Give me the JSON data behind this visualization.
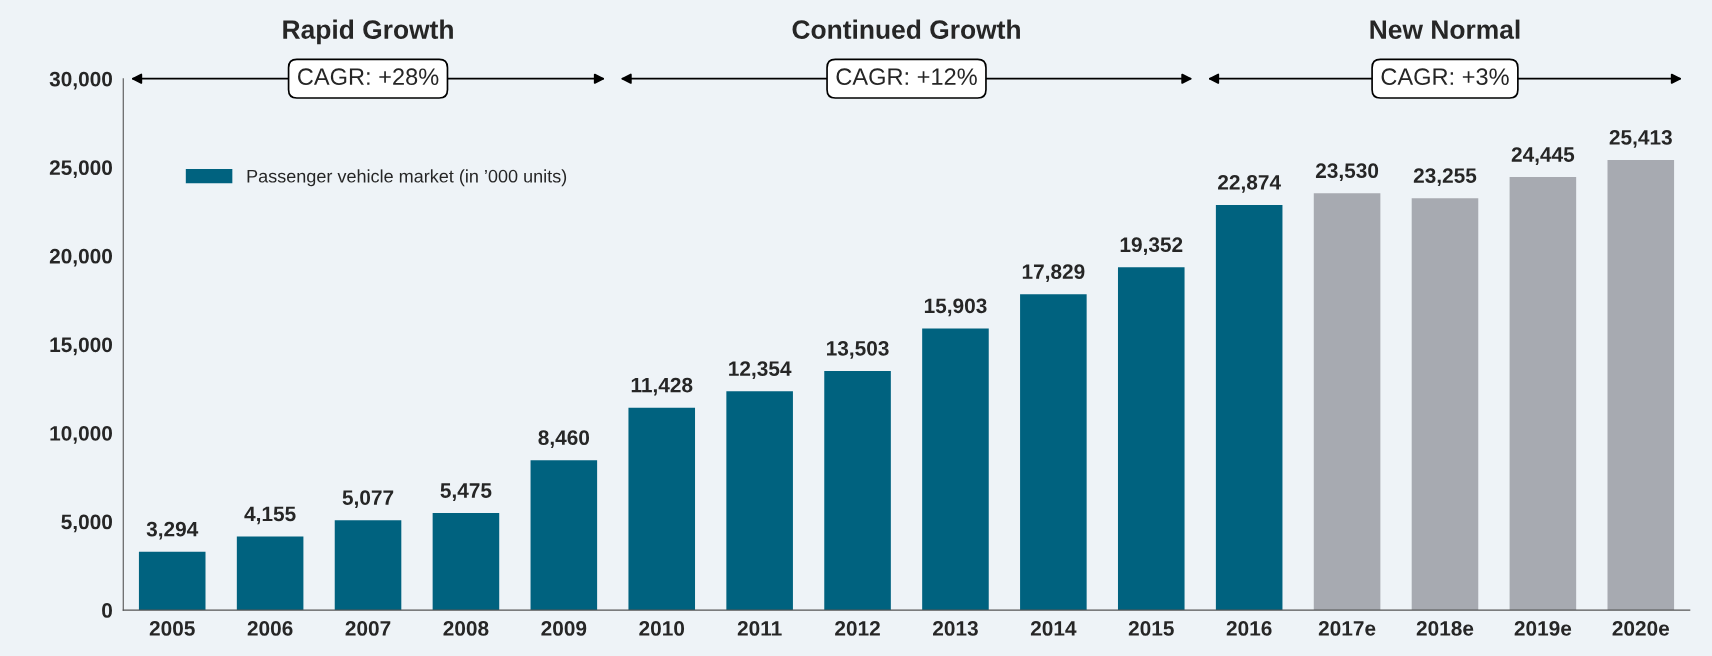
{
  "chart_data": {
    "type": "bar",
    "categories": [
      "2005",
      "2006",
      "2007",
      "2008",
      "2009",
      "2010",
      "2011",
      "2012",
      "2013",
      "2014",
      "2015",
      "2016",
      "2017e",
      "2018e",
      "2019e",
      "2020e"
    ],
    "series": [
      {
        "name": "Passenger vehicle market (in ’000 units)",
        "color": "#00627f",
        "colors": [
          "#00627f",
          "#00627f",
          "#00627f",
          "#00627f",
          "#00627f",
          "#00627f",
          "#00627f",
          "#00627f",
          "#00627f",
          "#00627f",
          "#00627f",
          "#00627f",
          "#a7aab1",
          "#a7aab1",
          "#a7aab1",
          "#a7aab1"
        ],
        "values": [
          3294,
          4155,
          5077,
          5475,
          8460,
          11428,
          12354,
          13503,
          15903,
          17829,
          19352,
          22874,
          23530,
          23255,
          24445,
          25413
        ],
        "value_labels": [
          "3,294",
          "4,155",
          "5,077",
          "5,475",
          "8,460",
          "11,428",
          "12,354",
          "13,503",
          "15,903",
          "17,829",
          "19,352",
          "22,874",
          "23,530",
          "23,255",
          "24,445",
          "25,413"
        ]
      }
    ],
    "ylim": [
      0,
      30000
    ],
    "yticks": [
      0,
      {
        "value": 5000,
        "label": "5,000"
      },
      {
        "value": 10000,
        "label": "10,000"
      },
      {
        "value": 15000,
        "label": "15,000"
      },
      {
        "value": 20000,
        "label": "20,000"
      },
      {
        "value": 25000,
        "label": "25,000"
      },
      {
        "value": 30000,
        "label": "30,000"
      }
    ],
    "annotations": [
      "Rapid Growth",
      "CAGR: +28%",
      "Continued Growth",
      "CAGR: +12%",
      "New Normal",
      "CAGR: +3%"
    ],
    "legend": "top left",
    "grid": false
  }
}
